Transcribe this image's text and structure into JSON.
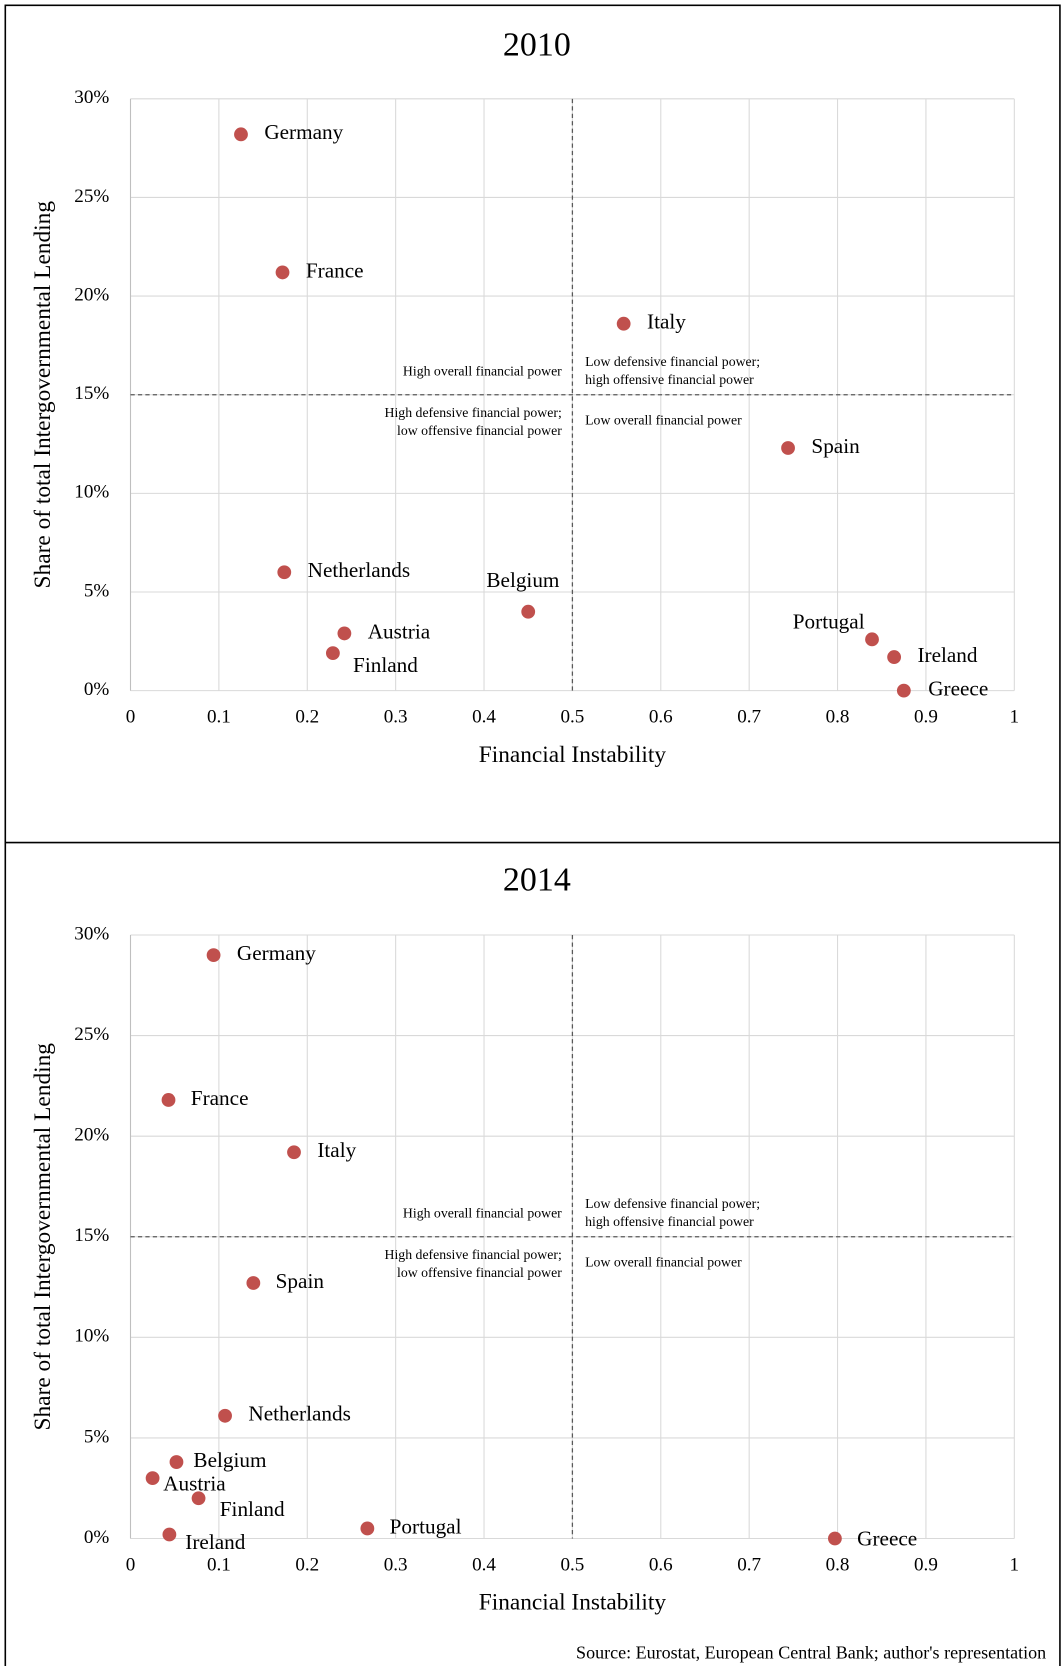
{
  "chart_data": [
    {
      "type": "scatter",
      "title": "2010",
      "xlabel": "Financial Instability",
      "ylabel": "Share of total Intergovernmental Lending",
      "color": "#c0504d",
      "categories": [
        "Germany",
        "France",
        "Italy",
        "Spain",
        "Netherlands",
        "Belgium",
        "Austria",
        "Finland",
        "Portugal",
        "Ireland",
        "Greece"
      ],
      "x": [
        0.125,
        0.172,
        0.558,
        0.744,
        0.174,
        0.45,
        0.242,
        0.229,
        0.839,
        0.864,
        0.875
      ],
      "values": [
        28.2,
        21.2,
        18.6,
        12.3,
        6.0,
        4.0,
        2.9,
        1.9,
        2.6,
        1.7,
        0
      ],
      "xlim": [
        0,
        1
      ],
      "ylim": [
        0,
        30
      ],
      "xticks": [
        0,
        0.1,
        0.2,
        0.3,
        0.4,
        0.5,
        0.6,
        0.7,
        0.8,
        0.9,
        1
      ],
      "yticks": [
        {
          "value": 0,
          "label": "0%"
        },
        {
          "value": 5,
          "label": "5%"
        },
        {
          "value": 10,
          "label": "10%"
        },
        {
          "value": 15,
          "label": "15%"
        },
        {
          "value": 20,
          "label": "20%"
        },
        {
          "value": 25,
          "label": "25%"
        },
        {
          "value": 30,
          "label": "30%"
        }
      ],
      "grid": true,
      "reference_lines": {
        "x": 0.5,
        "y": 15
      },
      "annotations": [
        {
          "position": "upper-left",
          "lines": [
            "High overall financial power"
          ]
        },
        {
          "position": "lower-left",
          "lines": [
            "High defensive financial power;",
            "low offensive financial power"
          ]
        },
        {
          "position": "upper-right",
          "lines": [
            "Low defensive financial power;",
            "high offensive financial power"
          ]
        },
        {
          "position": "lower-right",
          "lines": [
            "Low overall financial power"
          ]
        }
      ]
    },
    {
      "type": "scatter",
      "title": "2014",
      "xlabel": "Financial Instability",
      "ylabel": "Share of total Intergovernmental Lending",
      "color": "#c0504d",
      "categories": [
        "Germany",
        "France",
        "Italy",
        "Spain",
        "Netherlands",
        "Belgium",
        "Austria",
        "Finland",
        "Ireland",
        "Portugal",
        "Greece"
      ],
      "x": [
        0.094,
        0.043,
        0.185,
        0.139,
        0.107,
        0.052,
        0.025,
        0.077,
        0.044,
        0.268,
        0.797
      ],
      "values": [
        29.0,
        21.8,
        19.2,
        12.7,
        6.1,
        3.8,
        3.0,
        2.0,
        0.2,
        0.5,
        0
      ],
      "xlim": [
        0,
        1
      ],
      "ylim": [
        0,
        30
      ],
      "xticks": [
        0,
        0.1,
        0.2,
        0.3,
        0.4,
        0.5,
        0.6,
        0.7,
        0.8,
        0.9,
        1
      ],
      "yticks": [
        {
          "value": 0,
          "label": "0%"
        },
        {
          "value": 5,
          "label": "5%"
        },
        {
          "value": 10,
          "label": "10%"
        },
        {
          "value": 15,
          "label": "15%"
        },
        {
          "value": 20,
          "label": "20%"
        },
        {
          "value": 25,
          "label": "25%"
        },
        {
          "value": 30,
          "label": "30%"
        }
      ],
      "grid": true,
      "reference_lines": {
        "x": 0.5,
        "y": 15
      },
      "annotations": [
        {
          "position": "upper-left",
          "lines": [
            "High overall financial power"
          ]
        },
        {
          "position": "lower-left",
          "lines": [
            "High defensive financial power;",
            "low offensive financial power"
          ]
        },
        {
          "position": "upper-right",
          "lines": [
            "Low defensive financial power;",
            "high offensive financial power"
          ]
        },
        {
          "position": "lower-right",
          "lines": [
            "Low overall financial power"
          ]
        }
      ]
    }
  ],
  "source": "Source: Eurostat, European Central Bank; author's representation"
}
